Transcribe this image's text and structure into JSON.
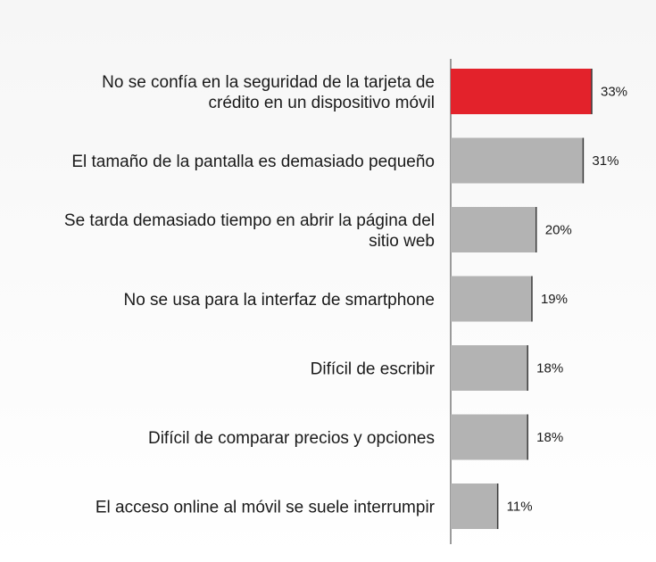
{
  "chart_data": {
    "type": "bar",
    "orientation": "horizontal",
    "categories": [
      "No se confía en la seguridad de la tarjeta de crédito en un dispositivo móvil",
      "El tamaño de la pantalla es demasiado pequeño",
      "Se tarda demasiado tiempo en abrir la página del sitio web",
      "No se usa para la interfaz de smartphone",
      "Difícil de escribir",
      "Difícil de comparar precios y opciones",
      "El acceso online al móvil se suele interrumpir"
    ],
    "category_lines": [
      [
        "No se confía en la seguridad de la tarjeta de",
        "crédito en un dispositivo móvil"
      ],
      [
        "El tamaño de la pantalla es demasiado pequeño"
      ],
      [
        "Se tarda demasiado tiempo en abrir la página del",
        "sitio web"
      ],
      [
        "No se usa para la interfaz de smartphone"
      ],
      [
        "Difícil de escribir"
      ],
      [
        "Difícil de comparar precios y opciones"
      ],
      [
        "El acceso online al móvil se suele interrumpir"
      ]
    ],
    "values": [
      33,
      31,
      20,
      19,
      18,
      18,
      11
    ],
    "value_labels": [
      "33%",
      "31%",
      "20%",
      "19%",
      "18%",
      "18%",
      "11%"
    ],
    "xlim": [
      0,
      33
    ],
    "grid": false,
    "colors": {
      "highlight": "#e3222b",
      "bar": "#b3b3b3",
      "bar_edge": "#3a3a3a",
      "axis": "#7a7a7a",
      "text": "#1a1a1a"
    },
    "highlight_index": 0
  }
}
